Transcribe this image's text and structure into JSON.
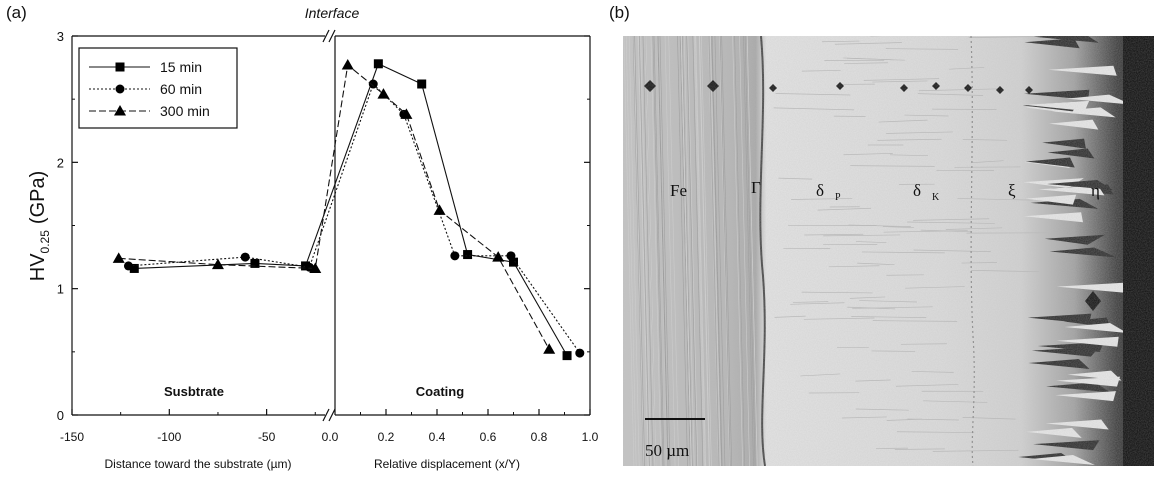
{
  "panel_a_label": "(a)",
  "panel_b_label": "(b)",
  "interface_label": "Interface",
  "substrate_label": "Susbtrate",
  "coating_label": "Coating",
  "micrograph": {
    "phase_labels": [
      "Fe",
      "Γ",
      "δ",
      "δ",
      "ξ",
      "η"
    ],
    "scale_bar_label": "50 µm"
  },
  "chart_data": {
    "type": "line",
    "ylabel": "HV 0.25 (GPa)",
    "ylabel_main": "HV",
    "ylabel_sub": "0.25",
    "ylabel_unit": "(GPa)",
    "ylim": [
      0,
      3
    ],
    "yticks": [
      "0",
      "1",
      "2",
      "3"
    ],
    "left_axis": {
      "xlabel": "Distance toward the substrate (µm)",
      "xlim": [
        -150,
        -20
      ],
      "xticks": [
        "-150",
        "-100",
        "-50",
        "0.0"
      ]
    },
    "right_axis": {
      "xlabel": "Relative displacement (x/Y)",
      "xlim": [
        0,
        1
      ],
      "xticks": [
        "0.2",
        "0.4",
        "0.6",
        "0.8",
        "1.0"
      ]
    },
    "legend_position": "top-left",
    "series": [
      {
        "name": "15 min",
        "marker": "square",
        "dash": "solid",
        "substrate": [
          [
            -118,
            1.16
          ],
          [
            -56,
            1.2
          ],
          [
            -30,
            1.18
          ]
        ],
        "coating": [
          [
            0.17,
            2.78
          ],
          [
            0.34,
            2.62
          ],
          [
            0.52,
            1.27
          ],
          [
            0.7,
            1.21
          ],
          [
            0.91,
            0.47
          ]
        ]
      },
      {
        "name": "60 min",
        "marker": "circle",
        "dash": "dot",
        "substrate": [
          [
            -121,
            1.18
          ],
          [
            -61,
            1.25
          ],
          [
            -28,
            1.17
          ]
        ],
        "coating": [
          [
            0.15,
            2.62
          ],
          [
            0.27,
            2.38
          ],
          [
            0.47,
            1.26
          ],
          [
            0.69,
            1.26
          ],
          [
            0.96,
            0.49
          ]
        ]
      },
      {
        "name": "300 min",
        "marker": "triangle",
        "dash": "dash",
        "substrate": [
          [
            -126,
            1.24
          ],
          [
            -75,
            1.19
          ],
          [
            -25,
            1.16
          ]
        ],
        "coating": [
          [
            0.05,
            2.77
          ],
          [
            0.19,
            2.54
          ],
          [
            0.28,
            2.38
          ],
          [
            0.41,
            1.62
          ],
          [
            0.64,
            1.25
          ],
          [
            0.84,
            0.52
          ]
        ]
      }
    ]
  }
}
